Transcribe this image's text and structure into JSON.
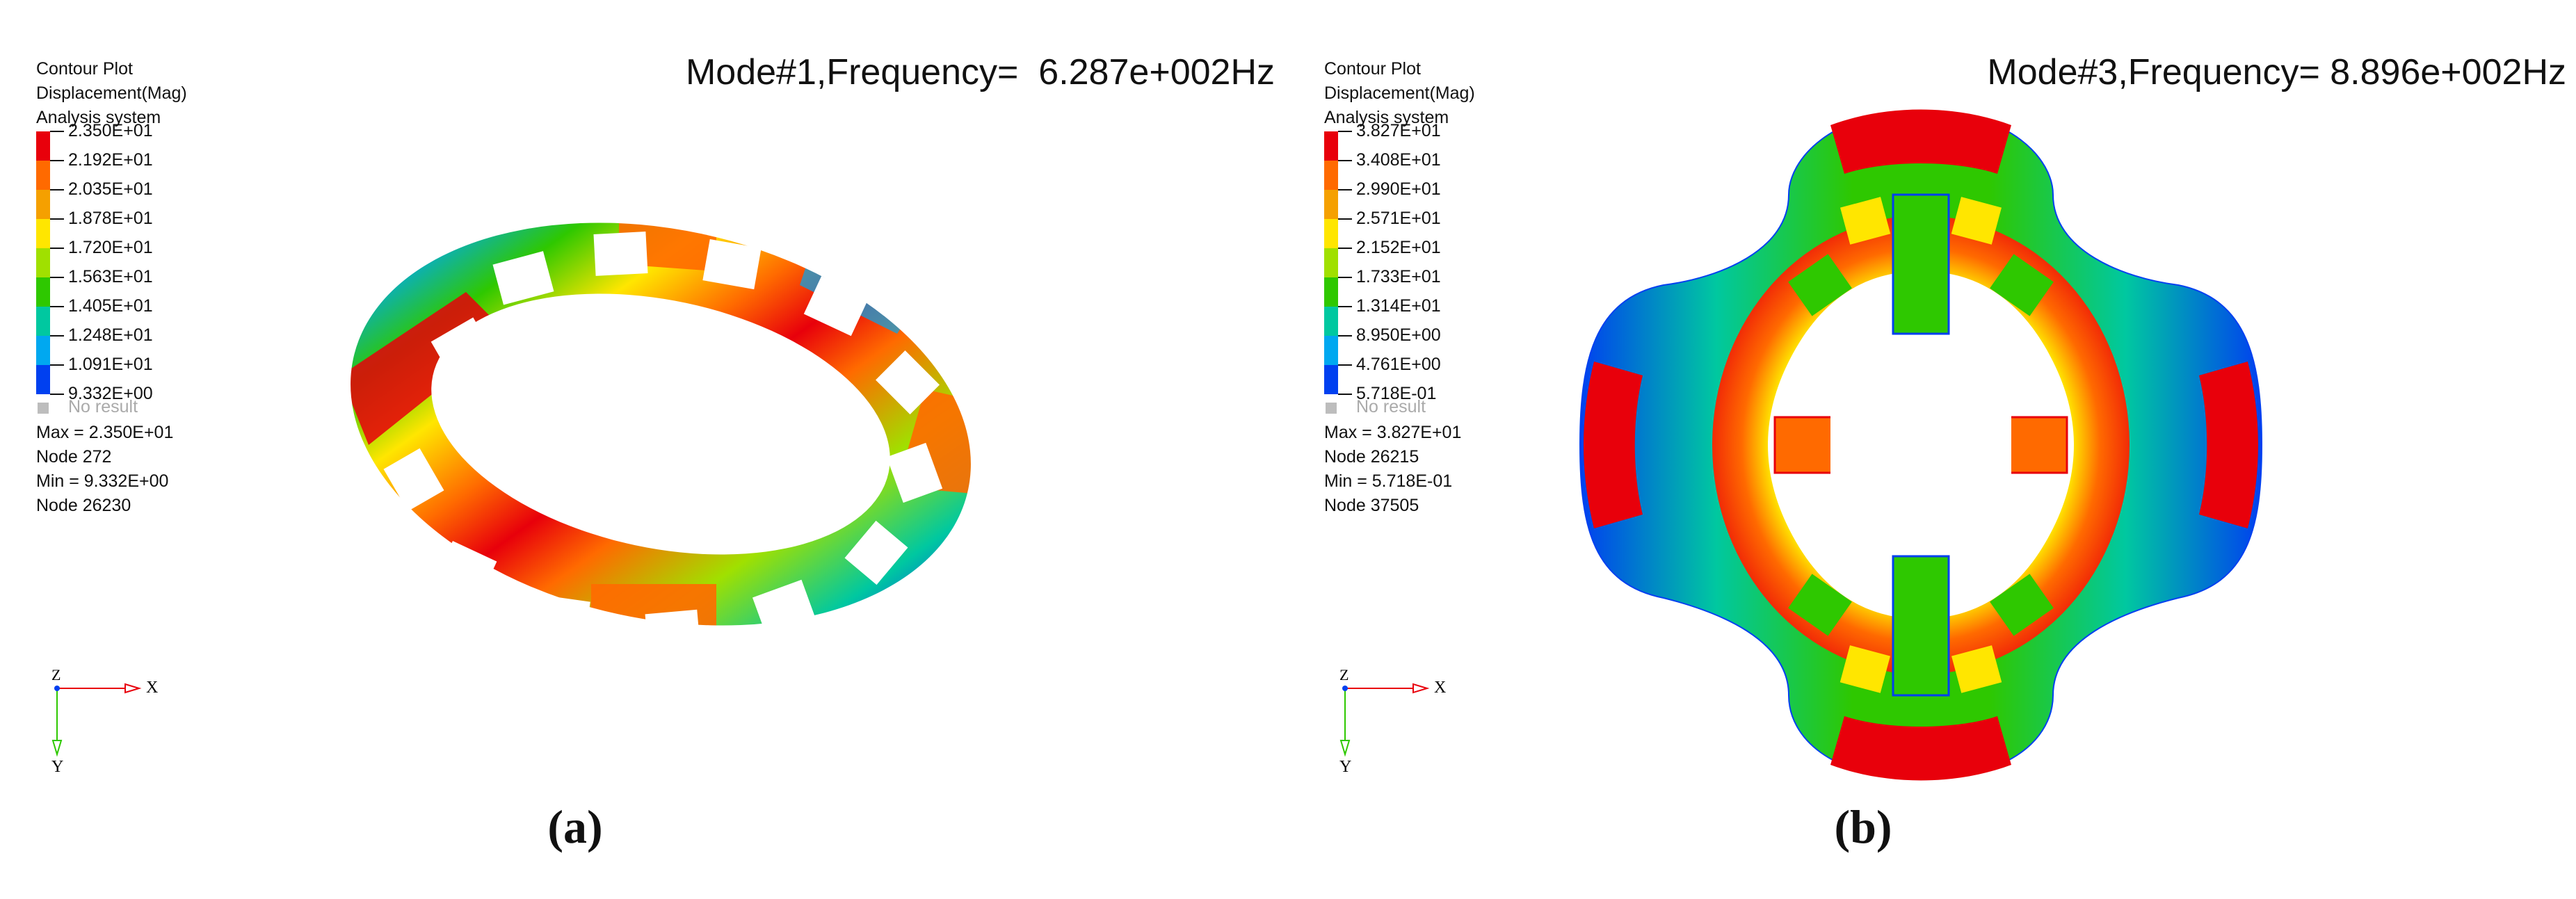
{
  "panels": [
    {
      "caption": "(a)",
      "title": "Mode#1,Frequency=  6.287e+002Hz",
      "legend": {
        "header": [
          "Contour Plot",
          "Displacement(Mag)",
          "Analysis system"
        ],
        "values": [
          "2.350E+01",
          "2.192E+01",
          "2.035E+01",
          "1.878E+01",
          "1.720E+01",
          "1.563E+01",
          "1.405E+01",
          "1.248E+01",
          "1.091E+01",
          "9.332E+00"
        ],
        "no_result": "No result",
        "stats": [
          "Max = 2.350E+01",
          "Node 272",
          "Min = 9.332E+00",
          "Node 26230"
        ]
      },
      "triad": {
        "z": "Z",
        "x": "X",
        "y": "Y"
      }
    },
    {
      "caption": "(b)",
      "title": "Mode#3,Frequency= 8.896e+002Hz",
      "legend": {
        "header": [
          "Contour Plot",
          "Displacement(Mag)",
          "Analysis system"
        ],
        "values": [
          "3.827E+01",
          "3.408E+01",
          "2.990E+01",
          "2.571E+01",
          "2.152E+01",
          "1.733E+01",
          "1.314E+01",
          "8.950E+00",
          "4.761E+00",
          "5.718E-01"
        ],
        "no_result": "No result",
        "stats": [
          "Max = 3.827E+01",
          "Node 26215",
          "Min = 5.718E-01",
          "Node 37505"
        ]
      },
      "triad": {
        "z": "Z",
        "x": "X",
        "y": "Y"
      }
    }
  ],
  "colors": {
    "scale": [
      "#e8000b",
      "#ff6a00",
      "#f5a000",
      "#ffe600",
      "#a0e000",
      "#2ec800",
      "#00c8a0",
      "#00a8f0",
      "#0040f0",
      "#0000b0"
    ]
  }
}
